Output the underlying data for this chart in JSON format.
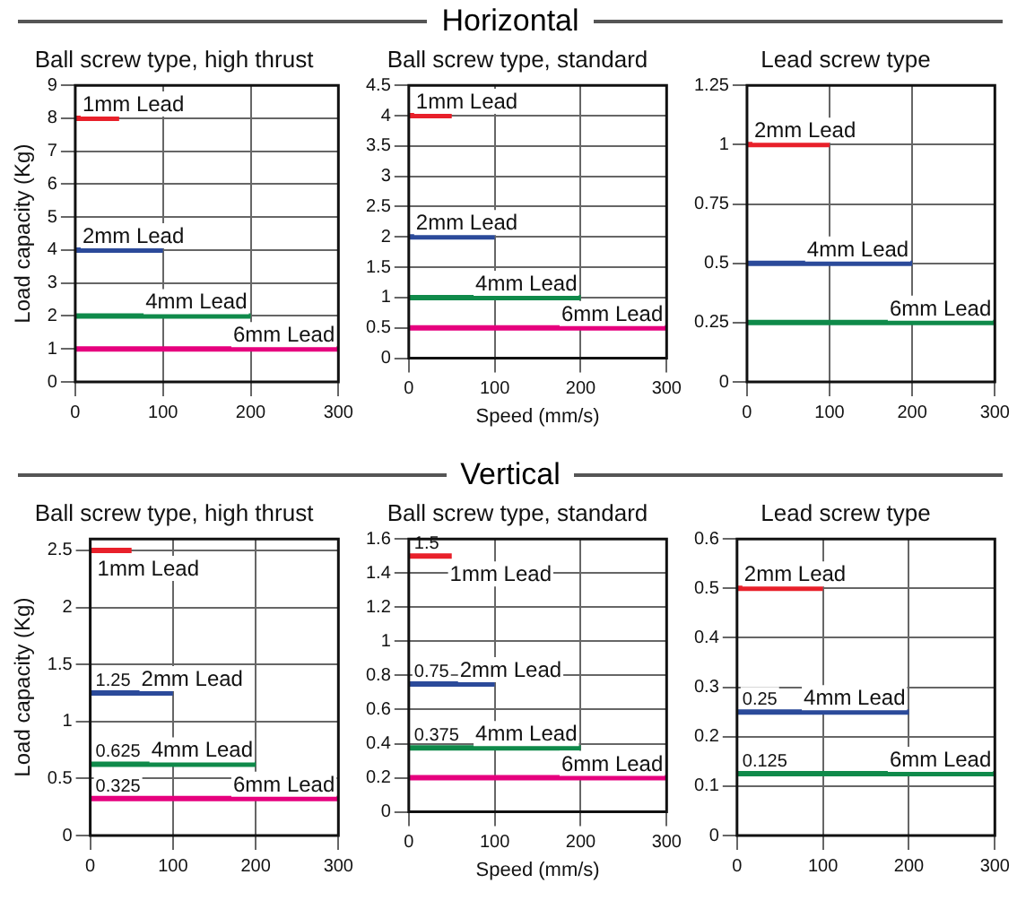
{
  "chart_data": [
    {
      "type": "other",
      "title": "Horizontal"
    },
    {
      "type": "line",
      "title": "Ball screw type, high thrust",
      "ylabel": "Load capacity (Kg)",
      "xlim": [
        0,
        300
      ],
      "xticks": [
        0,
        100,
        200,
        300
      ],
      "ylim": [
        0,
        9
      ],
      "yticks": [
        0,
        1,
        2,
        3,
        4,
        5,
        6,
        7,
        8,
        9
      ],
      "grid": true,
      "series": [
        {
          "name": "1mm Lead",
          "color": "#e8202a",
          "x": [
            0,
            50
          ],
          "values": [
            8,
            8
          ]
        },
        {
          "name": "2mm Lead",
          "color": "#2b4a9a",
          "x": [
            0,
            100
          ],
          "values": [
            4,
            4
          ]
        },
        {
          "name": "4mm Lead",
          "color": "#0f8a4a",
          "x": [
            0,
            200
          ],
          "values": [
            2,
            2
          ]
        },
        {
          "name": "6mm Lead",
          "color": "#e6007e",
          "x": [
            0,
            300
          ],
          "values": [
            1,
            1
          ]
        }
      ]
    },
    {
      "type": "line",
      "title": "Ball screw type, standard",
      "xlabel": "Speed (mm/s)",
      "xlim": [
        0,
        300
      ],
      "xticks": [
        0,
        100,
        200,
        300
      ],
      "ylim": [
        0,
        4.5
      ],
      "yticks": [
        0,
        0.5,
        1,
        1.5,
        2,
        2.5,
        3,
        3.5,
        4,
        4.5
      ],
      "grid": true,
      "series": [
        {
          "name": "1mm Lead",
          "color": "#e8202a",
          "x": [
            0,
            50
          ],
          "values": [
            4,
            4
          ]
        },
        {
          "name": "2mm Lead",
          "color": "#2b4a9a",
          "x": [
            0,
            100
          ],
          "values": [
            2,
            2
          ]
        },
        {
          "name": "4mm Lead",
          "color": "#0f8a4a",
          "x": [
            0,
            200
          ],
          "values": [
            1,
            1
          ]
        },
        {
          "name": "6mm Lead",
          "color": "#e6007e",
          "x": [
            0,
            300
          ],
          "values": [
            0.5,
            0.5
          ]
        }
      ]
    },
    {
      "type": "line",
      "title": "Lead screw type",
      "xlim": [
        0,
        300
      ],
      "xticks": [
        0,
        100,
        200,
        300
      ],
      "ylim": [
        0,
        1.25
      ],
      "yticks": [
        0,
        0.25,
        0.5,
        0.75,
        1,
        1.25
      ],
      "grid": true,
      "series": [
        {
          "name": "2mm Lead",
          "color": "#e8202a",
          "x": [
            0,
            100
          ],
          "values": [
            1,
            1
          ]
        },
        {
          "name": "4mm Lead",
          "color": "#2b4a9a",
          "x": [
            0,
            200
          ],
          "values": [
            0.5,
            0.5
          ]
        },
        {
          "name": "6mm Lead",
          "color": "#0f8a4a",
          "x": [
            0,
            300
          ],
          "values": [
            0.25,
            0.25
          ]
        }
      ]
    },
    {
      "type": "other",
      "title": "Vertical"
    },
    {
      "type": "line",
      "title": "Ball screw type, high thrust",
      "ylabel": "Load capacity (Kg)",
      "xlim": [
        0,
        300
      ],
      "xticks": [
        0,
        100,
        200,
        300
      ],
      "ylim": [
        0,
        2.6
      ],
      "yticks": [
        0,
        0.5,
        1,
        1.5,
        2,
        2.5
      ],
      "grid": true,
      "series": [
        {
          "name": "1mm Lead",
          "color": "#e8202a",
          "x": [
            0,
            50
          ],
          "values": [
            2.5,
            2.5
          ]
        },
        {
          "name": "2mm Lead",
          "color": "#2b4a9a",
          "x": [
            0,
            100
          ],
          "values": [
            1.25,
            1.25
          ]
        },
        {
          "name": "4mm Lead",
          "color": "#0f8a4a",
          "x": [
            0,
            200
          ],
          "values": [
            0.625,
            0.625
          ]
        },
        {
          "name": "6mm Lead",
          "color": "#e6007e",
          "x": [
            0,
            300
          ],
          "values": [
            0.325,
            0.325
          ]
        }
      ],
      "annotations": [
        {
          "text": "1.25",
          "y": 1.25
        },
        {
          "text": "0.625",
          "y": 0.625
        },
        {
          "text": "0.325",
          "y": 0.325
        }
      ]
    },
    {
      "type": "line",
      "title": "Ball screw type, standard",
      "xlabel": "Speed (mm/s)",
      "xlim": [
        0,
        300
      ],
      "xticks": [
        0,
        100,
        200,
        300
      ],
      "ylim": [
        0,
        1.6
      ],
      "yticks": [
        0,
        0.2,
        0.4,
        0.6,
        0.8,
        1,
        1.2,
        1.4,
        1.6
      ],
      "grid": true,
      "series": [
        {
          "name": "1mm Lead",
          "color": "#e8202a",
          "x": [
            0,
            50
          ],
          "values": [
            1.5,
            1.5
          ]
        },
        {
          "name": "2mm Lead",
          "color": "#2b4a9a",
          "x": [
            0,
            100
          ],
          "values": [
            0.75,
            0.75
          ]
        },
        {
          "name": "4mm Lead",
          "color": "#0f8a4a",
          "x": [
            0,
            200
          ],
          "values": [
            0.375,
            0.375
          ]
        },
        {
          "name": "6mm Lead",
          "color": "#e6007e",
          "x": [
            0,
            300
          ],
          "values": [
            0.2,
            0.2
          ]
        }
      ],
      "annotations": [
        {
          "text": "1.5",
          "y": 1.5
        },
        {
          "text": "0.75",
          "y": 0.75
        },
        {
          "text": "0.375",
          "y": 0.375
        }
      ]
    },
    {
      "type": "line",
      "title": "Lead screw type",
      "xlim": [
        0,
        300
      ],
      "xticks": [
        0,
        100,
        200,
        300
      ],
      "ylim": [
        0,
        0.6
      ],
      "yticks": [
        0,
        0.1,
        0.2,
        0.3,
        0.4,
        0.5,
        0.6
      ],
      "grid": true,
      "series": [
        {
          "name": "2mm Lead",
          "color": "#e8202a",
          "x": [
            0,
            100
          ],
          "values": [
            0.5,
            0.5
          ]
        },
        {
          "name": "4mm Lead",
          "color": "#2b4a9a",
          "x": [
            0,
            200
          ],
          "values": [
            0.25,
            0.25
          ]
        },
        {
          "name": "6mm Lead",
          "color": "#0f8a4a",
          "x": [
            0,
            300
          ],
          "values": [
            0.125,
            0.125
          ]
        }
      ],
      "annotations": [
        {
          "text": "0.25",
          "y": 0.25
        },
        {
          "text": "0.125",
          "y": 0.125
        }
      ]
    }
  ]
}
